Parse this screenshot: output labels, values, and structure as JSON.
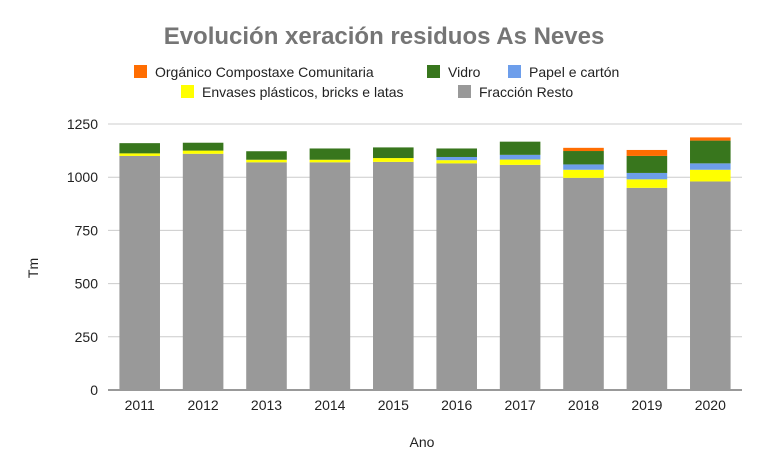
{
  "chart_data": {
    "type": "bar",
    "stacked": true,
    "title": "Evolución xeración residuos As Neves",
    "xlabel": "Ano",
    "ylabel": "Tm",
    "ylim": [
      0,
      1250
    ],
    "yticks": [
      0,
      250,
      500,
      750,
      1000,
      1250
    ],
    "grid": true,
    "legend_position": "top",
    "categories": [
      "2011",
      "2012",
      "2013",
      "2014",
      "2015",
      "2016",
      "2017",
      "2018",
      "2019",
      "2020"
    ],
    "series": [
      {
        "name": "Fracción Resto",
        "color": "#999999",
        "values": [
          1100,
          1110,
          1070,
          1070,
          1072,
          1065,
          1058,
          997,
          950,
          980
        ]
      },
      {
        "name": "Envases plásticos, bricks e latas",
        "color": "#ffff00",
        "values": [
          12,
          15,
          12,
          12,
          18,
          15,
          25,
          38,
          40,
          55
        ]
      },
      {
        "name": "Papel e cartón",
        "color": "#6d9eeb",
        "values": [
          0,
          0,
          0,
          0,
          0,
          15,
          22,
          25,
          30,
          30
        ]
      },
      {
        "name": "Vidro",
        "color": "#38761d",
        "values": [
          48,
          37,
          40,
          53,
          50,
          40,
          62,
          63,
          80,
          107
        ]
      },
      {
        "name": "Orgánico Compostaxe Comunitaria",
        "color": "#ff6d01",
        "values": [
          0,
          0,
          0,
          0,
          0,
          0,
          0,
          15,
          28,
          15
        ]
      }
    ],
    "legend_order": [
      "Orgánico Compostaxe Comunitaria",
      "Vidro",
      "Papel e cartón",
      "Envases plásticos, bricks e latas",
      "Fracción Resto"
    ]
  }
}
